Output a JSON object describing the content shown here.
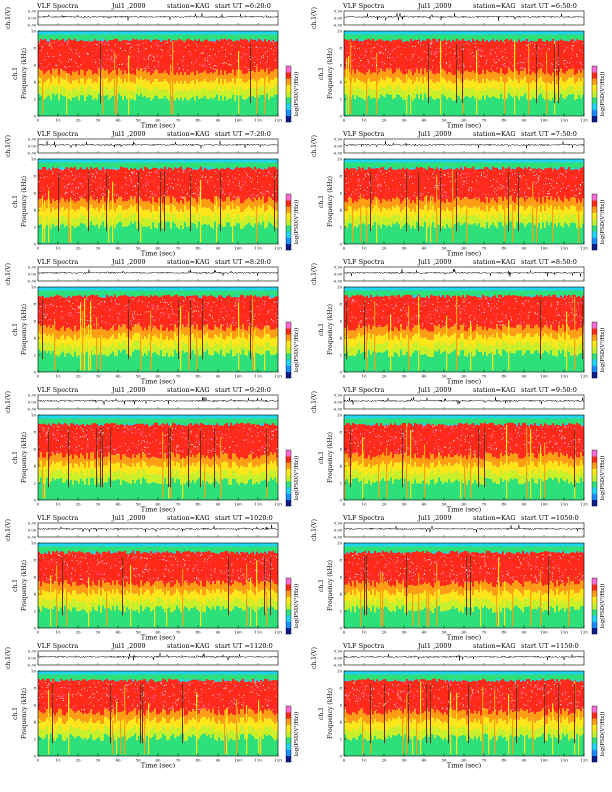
{
  "chart_data": {
    "type": "heatmap",
    "common": {
      "title_left": "VLF Spectra",
      "date": "Jul1 ,2009",
      "station": "station=KAG",
      "start_prefix": "start  UT =",
      "top_ylabel": "ch.1(V)",
      "top_yticks": [
        "0.30",
        "0.00",
        "-0.30"
      ],
      "top_ylim": [
        -0.3,
        0.3
      ],
      "spec_ylabel_1": "ch.1",
      "spec_ylabel_2": "Frequency (kHz)",
      "spec_yticks": [
        "0",
        "2",
        "4",
        "6",
        "8",
        "10"
      ],
      "spec_ylim": [
        0,
        10
      ],
      "xlabel": "Time (sec)",
      "xticks": [
        "0",
        "10",
        "20",
        "30",
        "40",
        "50",
        "60",
        "70",
        "80",
        "90",
        "100",
        "110",
        "120"
      ],
      "xlim": [
        0,
        120
      ],
      "colorbar_label": "log(PSD(V²/Hz))",
      "colorbar_colors": [
        "#0a1f8c",
        "#1a8cff",
        "#21d4f0",
        "#2ee07a",
        "#c8f02a",
        "#ffe61a",
        "#ff9d14",
        "#ff2a1a",
        "#ff6bd0"
      ]
    },
    "panels": [
      {
        "start_ut": "6:20:0"
      },
      {
        "start_ut": "6:50:0"
      },
      {
        "start_ut": "7:20:0"
      },
      {
        "start_ut": "7:50:0"
      },
      {
        "start_ut": "8:20:0"
      },
      {
        "start_ut": "8:50:0"
      },
      {
        "start_ut": "9:20:0"
      },
      {
        "start_ut": "9:50:0"
      },
      {
        "start_ut": "1020:0"
      },
      {
        "start_ut": "1050:0"
      },
      {
        "start_ut": "1120:0"
      },
      {
        "start_ut": "1150:0"
      }
    ]
  }
}
